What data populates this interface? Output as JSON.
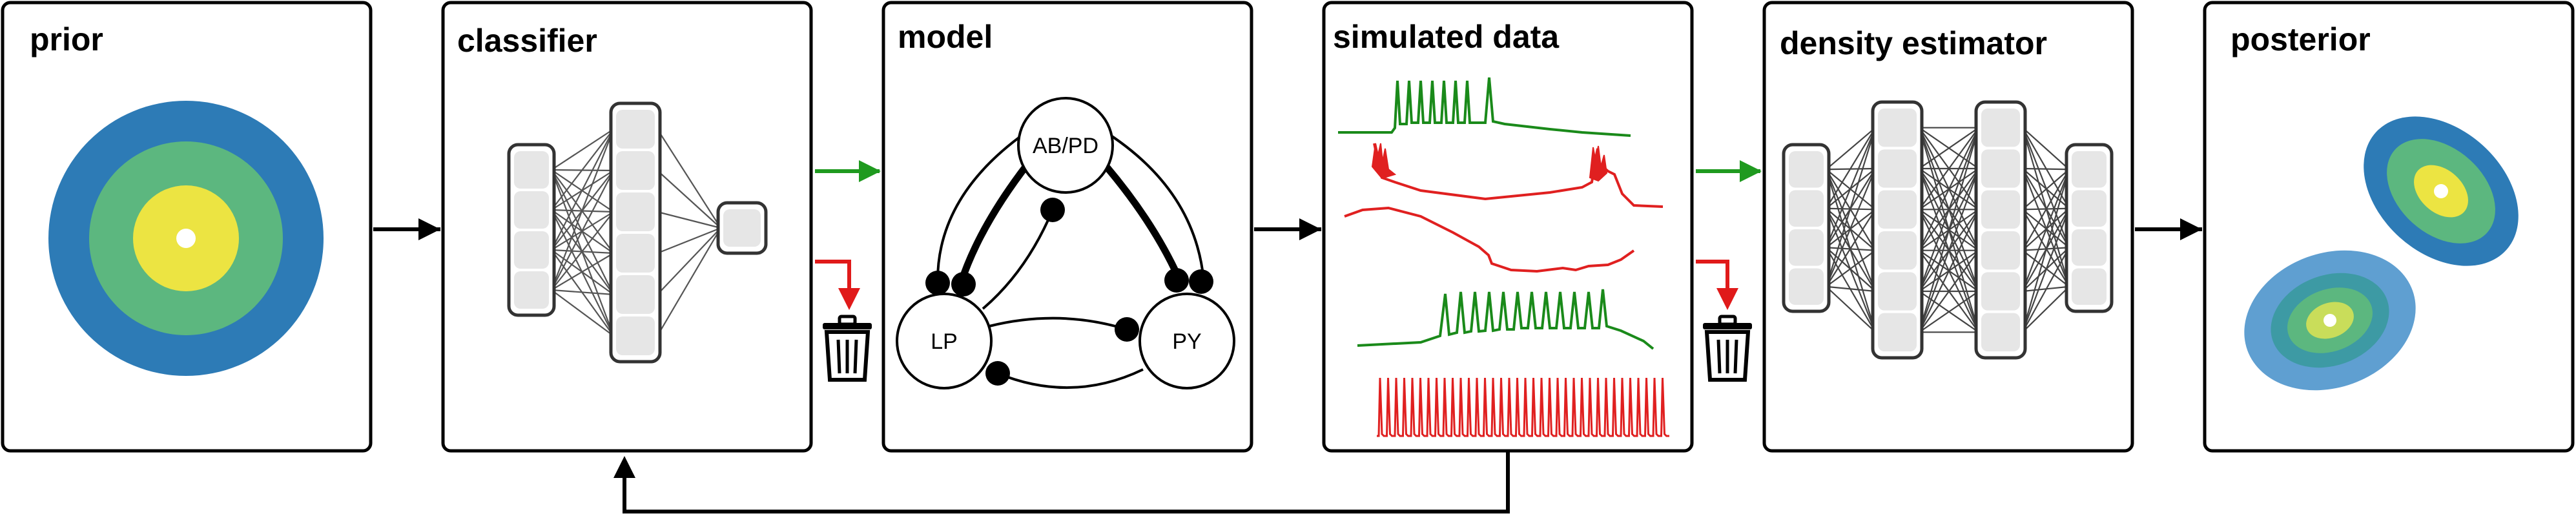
{
  "panels": {
    "prior": "prior",
    "classifier": "classifier",
    "model": "model",
    "simulated_data": "simulated data",
    "density_estimator": "density estimator",
    "posterior": "posterior"
  },
  "model_nodes": {
    "abpd": "AB/PD",
    "lp": "LP",
    "py": "PY"
  },
  "icons": {
    "accept_arrow": "green-arrow-right-icon",
    "reject_arrow": "red-arrow-down-icon",
    "trash": "trash-icon"
  },
  "colors": {
    "dark_blue": "#2d7bb6",
    "blue_green": "#3d9aa4",
    "green": "#5cb77f",
    "yellow": "#ece442",
    "light_blue": "#5f9fd1",
    "accept_green": "#1f9a1f",
    "reject_red": "#e01a1a",
    "trace_green": "#1a8a1a",
    "trace_red": "#e02020",
    "layer_fill": "#e6e6e6",
    "layer_stroke": "#333333"
  }
}
